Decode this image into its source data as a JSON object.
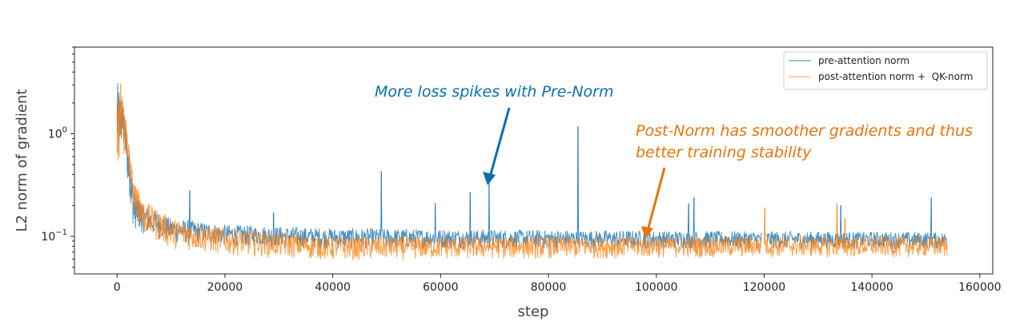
{
  "chart_data": {
    "type": "line",
    "xlabel": "step",
    "ylabel": "L2 norm of gradient",
    "xlim": [
      -7900,
      162400
    ],
    "ylim": [
      0.043,
      7.0
    ],
    "yscale": "log",
    "grid": false,
    "legend_placement": "top-right",
    "x_ticks": [
      {
        "value": 0,
        "label": "0"
      },
      {
        "value": 20000,
        "label": "20000"
      },
      {
        "value": 40000,
        "label": "40000"
      },
      {
        "value": 60000,
        "label": "60000"
      },
      {
        "value": 80000,
        "label": "80000"
      },
      {
        "value": 100000,
        "label": "100000"
      },
      {
        "value": 120000,
        "label": "120000"
      },
      {
        "value": 140000,
        "label": "140000"
      },
      {
        "value": 160000,
        "label": "160000"
      }
    ],
    "y_ticks": [
      {
        "value": 1,
        "base": "10",
        "exp": "0"
      },
      {
        "value": 0.1,
        "base": "10",
        "exp": "−1"
      }
    ],
    "series": [
      {
        "name": "pre-attention norm",
        "color": "#1f77b4",
        "band": [
          [
            0,
            0.5,
            3.3
          ],
          [
            1000,
            0.8,
            2.0
          ],
          [
            2000,
            0.3,
            0.8
          ],
          [
            3000,
            0.12,
            0.28
          ],
          [
            5000,
            0.105,
            0.2
          ],
          [
            10000,
            0.085,
            0.15
          ],
          [
            20000,
            0.08,
            0.13
          ],
          [
            40000,
            0.075,
            0.12
          ],
          [
            80000,
            0.075,
            0.115
          ],
          [
            120000,
            0.075,
            0.112
          ],
          [
            154000,
            0.075,
            0.11
          ]
        ],
        "spikes": [
          [
            13500,
            0.28
          ],
          [
            29000,
            0.17
          ],
          [
            49000,
            0.43
          ],
          [
            59000,
            0.21
          ],
          [
            65500,
            0.27
          ],
          [
            69000,
            0.33
          ],
          [
            85500,
            1.18
          ],
          [
            106000,
            0.21
          ],
          [
            107000,
            0.24
          ],
          [
            134200,
            0.2
          ],
          [
            151000,
            0.24
          ]
        ],
        "gap": [
          119500,
          120300
        ]
      },
      {
        "name": "post-attention norm +  QK-norm",
        "color": "#ff7f0e",
        "band": [
          [
            0,
            0.45,
            5.5
          ],
          [
            1000,
            0.7,
            2.2
          ],
          [
            2000,
            0.4,
            1.0
          ],
          [
            3000,
            0.17,
            0.35
          ],
          [
            5000,
            0.1,
            0.22
          ],
          [
            10000,
            0.075,
            0.15
          ],
          [
            20000,
            0.065,
            0.12
          ],
          [
            40000,
            0.058,
            0.1
          ],
          [
            80000,
            0.06,
            0.1
          ],
          [
            120000,
            0.062,
            0.1
          ],
          [
            154000,
            0.062,
            0.1
          ]
        ],
        "spikes": [
          [
            120100,
            0.19
          ],
          [
            133500,
            0.21
          ],
          [
            135000,
            0.15
          ]
        ],
        "gap": [
          119500,
          120000
        ]
      }
    ],
    "annotations": [
      {
        "text": "More loss spikes with Pre-Norm",
        "color": "#0a6fae",
        "arrow_to": [
          69000,
          0.33
        ]
      },
      {
        "lines": [
          "Post-Norm has smoother gradients and thus",
          "better training stability"
        ],
        "color": "#e8730c",
        "arrow_to": [
          98500,
          0.085
        ]
      }
    ]
  }
}
